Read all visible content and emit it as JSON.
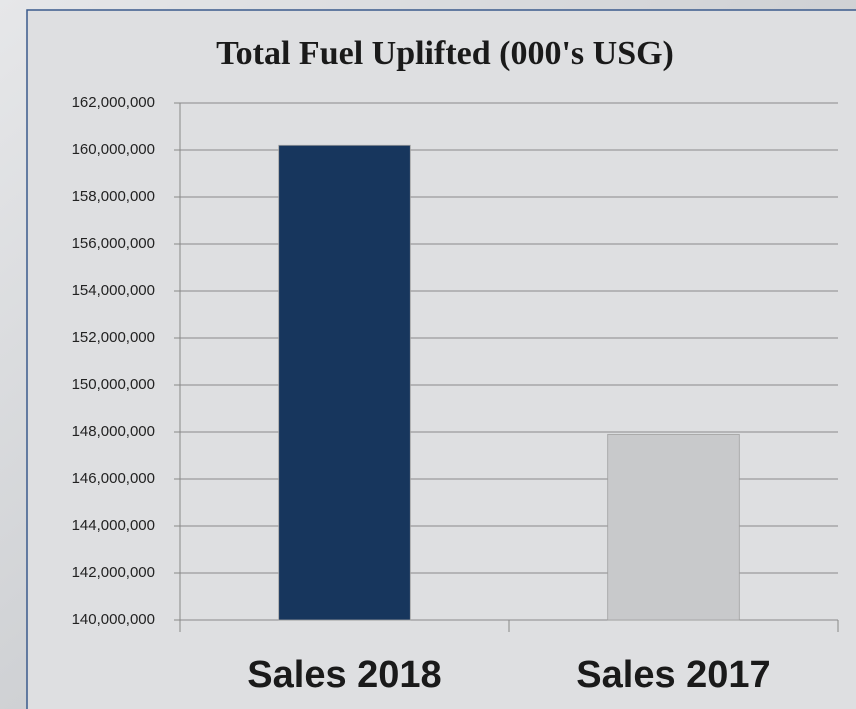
{
  "chart_data": {
    "type": "bar",
    "title": "Total Fuel Uplifted (000's USG)",
    "categories": [
      "Sales 2018",
      "Sales 2017"
    ],
    "values": [
      160200000,
      147900000
    ],
    "colors": [
      "#17365d",
      "#c8c9cb"
    ],
    "ylim": [
      140000000,
      162000000
    ],
    "yticks": [
      {
        "value": 140000000,
        "label": "140,000,000"
      },
      {
        "value": 142000000,
        "label": "142,000,000"
      },
      {
        "value": 144000000,
        "label": "144,000,000"
      },
      {
        "value": 146000000,
        "label": "146,000,000"
      },
      {
        "value": 148000000,
        "label": "148,000,000"
      },
      {
        "value": 150000000,
        "label": "150,000,000"
      },
      {
        "value": 152000000,
        "label": "152,000,000"
      },
      {
        "value": 154000000,
        "label": "154,000,000"
      },
      {
        "value": 156000000,
        "label": "156,000,000"
      },
      {
        "value": 158000000,
        "label": "158,000,000"
      },
      {
        "value": 160000000,
        "label": "160,000,000"
      },
      {
        "value": 162000000,
        "label": "162,000,000"
      }
    ],
    "grid": true
  }
}
